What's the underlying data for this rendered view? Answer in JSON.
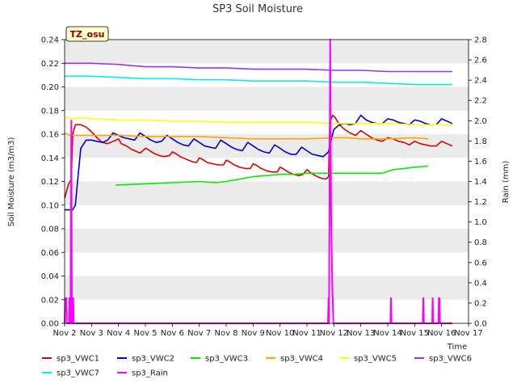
{
  "chart_data": {
    "type": "line",
    "title": "SP3 Soil Moisture",
    "xlabel": "Time",
    "ylabel": "Soil Moisture (m3/m3)",
    "y2label": "Rain (mm)",
    "badge": "TZ_osu",
    "xlim": [
      2,
      17
    ],
    "ylim": [
      0,
      0.24
    ],
    "y2lim": [
      0,
      2.8
    ],
    "x_ticks": [
      2,
      3,
      4,
      5,
      6,
      7,
      8,
      9,
      10,
      11,
      12,
      13,
      14,
      15,
      16,
      17
    ],
    "x_tick_labels": [
      "Nov 2",
      "Nov 3",
      "Nov 4",
      "Nov 5",
      "Nov 6",
      "Nov 7",
      "Nov 8",
      "Nov 9",
      "Nov 10",
      "Nov 11",
      "Nov 12",
      "Nov 13",
      "Nov 14",
      "Nov 15",
      "Nov 16",
      "Nov 17"
    ],
    "y_ticks": [
      "0.00",
      "0.02",
      "0.04",
      "0.06",
      "0.08",
      "0.10",
      "0.12",
      "0.14",
      "0.16",
      "0.18",
      "0.20",
      "0.22",
      "0.24"
    ],
    "y2_ticks": [
      "0.0",
      "0.2",
      "0.4",
      "0.6",
      "0.8",
      "1.0",
      "1.2",
      "1.4",
      "1.6",
      "1.8",
      "2.0",
      "2.2",
      "2.4",
      "2.6",
      "2.8"
    ],
    "grid": "horizontal bands",
    "legend_position": "bottom",
    "series": [
      {
        "name": "sp3_VWC1",
        "color": "#dd0000",
        "axis": "left",
        "points": [
          [
            2.0,
            0.106
          ],
          [
            2.15,
            0.118
          ],
          [
            2.25,
            0.122
          ],
          [
            2.3,
            0.16
          ],
          [
            2.4,
            0.168
          ],
          [
            2.6,
            0.168
          ],
          [
            2.8,
            0.166
          ],
          [
            3.0,
            0.162
          ],
          [
            3.2,
            0.157
          ],
          [
            3.4,
            0.153
          ],
          [
            3.6,
            0.152
          ],
          [
            3.8,
            0.154
          ],
          [
            4.0,
            0.156
          ],
          [
            4.1,
            0.152
          ],
          [
            4.3,
            0.15
          ],
          [
            4.5,
            0.147
          ],
          [
            4.7,
            0.145
          ],
          [
            4.8,
            0.144
          ],
          [
            4.9,
            0.146
          ],
          [
            5.0,
            0.148
          ],
          [
            5.1,
            0.147
          ],
          [
            5.3,
            0.144
          ],
          [
            5.5,
            0.142
          ],
          [
            5.7,
            0.141
          ],
          [
            5.9,
            0.142
          ],
          [
            6.0,
            0.145
          ],
          [
            6.1,
            0.144
          ],
          [
            6.3,
            0.141
          ],
          [
            6.5,
            0.139
          ],
          [
            6.7,
            0.137
          ],
          [
            6.9,
            0.136
          ],
          [
            7.0,
            0.14
          ],
          [
            7.1,
            0.139
          ],
          [
            7.3,
            0.136
          ],
          [
            7.5,
            0.135
          ],
          [
            7.7,
            0.134
          ],
          [
            7.9,
            0.134
          ],
          [
            8.0,
            0.138
          ],
          [
            8.1,
            0.137
          ],
          [
            8.3,
            0.134
          ],
          [
            8.5,
            0.132
          ],
          [
            8.7,
            0.131
          ],
          [
            8.9,
            0.131
          ],
          [
            9.0,
            0.135
          ],
          [
            9.1,
            0.134
          ],
          [
            9.3,
            0.131
          ],
          [
            9.5,
            0.129
          ],
          [
            9.7,
            0.128
          ],
          [
            9.9,
            0.128
          ],
          [
            10.0,
            0.132
          ],
          [
            10.1,
            0.131
          ],
          [
            10.3,
            0.128
          ],
          [
            10.5,
            0.126
          ],
          [
            10.7,
            0.125
          ],
          [
            10.85,
            0.126
          ],
          [
            11.0,
            0.13
          ],
          [
            11.1,
            0.128
          ],
          [
            11.3,
            0.125
          ],
          [
            11.5,
            0.123
          ],
          [
            11.7,
            0.122
          ],
          [
            11.8,
            0.124
          ],
          [
            11.85,
            0.17
          ],
          [
            11.95,
            0.176
          ],
          [
            12.05,
            0.174
          ],
          [
            12.2,
            0.168
          ],
          [
            12.4,
            0.164
          ],
          [
            12.6,
            0.161
          ],
          [
            12.8,
            0.159
          ],
          [
            13.0,
            0.163
          ],
          [
            13.2,
            0.16
          ],
          [
            13.4,
            0.157
          ],
          [
            13.6,
            0.155
          ],
          [
            13.8,
            0.154
          ],
          [
            14.0,
            0.157
          ],
          [
            14.2,
            0.156
          ],
          [
            14.4,
            0.154
          ],
          [
            14.6,
            0.153
          ],
          [
            14.8,
            0.151
          ],
          [
            15.0,
            0.154
          ],
          [
            15.2,
            0.152
          ],
          [
            15.4,
            0.151
          ],
          [
            15.6,
            0.15
          ],
          [
            15.8,
            0.15
          ],
          [
            16.0,
            0.154
          ],
          [
            16.2,
            0.152
          ],
          [
            16.4,
            0.15
          ]
        ]
      },
      {
        "name": "sp3_VWC2",
        "color": "#0000cc",
        "axis": "left",
        "points": [
          [
            2.0,
            0.096
          ],
          [
            2.3,
            0.096
          ],
          [
            2.4,
            0.1
          ],
          [
            2.5,
            0.125
          ],
          [
            2.6,
            0.148
          ],
          [
            2.8,
            0.155
          ],
          [
            3.0,
            0.155
          ],
          [
            3.2,
            0.154
          ],
          [
            3.4,
            0.153
          ],
          [
            3.6,
            0.155
          ],
          [
            3.8,
            0.161
          ],
          [
            4.0,
            0.159
          ],
          [
            4.2,
            0.157
          ],
          [
            4.4,
            0.156
          ],
          [
            4.6,
            0.155
          ],
          [
            4.8,
            0.161
          ],
          [
            5.0,
            0.158
          ],
          [
            5.2,
            0.155
          ],
          [
            5.4,
            0.153
          ],
          [
            5.6,
            0.154
          ],
          [
            5.8,
            0.159
          ],
          [
            6.0,
            0.156
          ],
          [
            6.2,
            0.153
          ],
          [
            6.4,
            0.151
          ],
          [
            6.6,
            0.15
          ],
          [
            6.8,
            0.156
          ],
          [
            7.0,
            0.153
          ],
          [
            7.2,
            0.15
          ],
          [
            7.4,
            0.149
          ],
          [
            7.6,
            0.148
          ],
          [
            7.8,
            0.155
          ],
          [
            8.0,
            0.152
          ],
          [
            8.2,
            0.149
          ],
          [
            8.4,
            0.147
          ],
          [
            8.6,
            0.146
          ],
          [
            8.8,
            0.153
          ],
          [
            9.0,
            0.15
          ],
          [
            9.2,
            0.147
          ],
          [
            9.4,
            0.145
          ],
          [
            9.6,
            0.144
          ],
          [
            9.8,
            0.151
          ],
          [
            10.0,
            0.148
          ],
          [
            10.2,
            0.145
          ],
          [
            10.4,
            0.143
          ],
          [
            10.6,
            0.143
          ],
          [
            10.8,
            0.149
          ],
          [
            11.0,
            0.146
          ],
          [
            11.2,
            0.143
          ],
          [
            11.4,
            0.142
          ],
          [
            11.6,
            0.141
          ],
          [
            11.8,
            0.145
          ],
          [
            11.9,
            0.155
          ],
          [
            12.0,
            0.164
          ],
          [
            12.2,
            0.168
          ],
          [
            12.4,
            0.169
          ],
          [
            12.6,
            0.168
          ],
          [
            12.8,
            0.169
          ],
          [
            13.0,
            0.176
          ],
          [
            13.2,
            0.172
          ],
          [
            13.4,
            0.17
          ],
          [
            13.6,
            0.169
          ],
          [
            13.8,
            0.169
          ],
          [
            14.0,
            0.173
          ],
          [
            14.2,
            0.172
          ],
          [
            14.4,
            0.17
          ],
          [
            14.6,
            0.169
          ],
          [
            14.8,
            0.168
          ],
          [
            15.0,
            0.172
          ],
          [
            15.2,
            0.171
          ],
          [
            15.4,
            0.169
          ],
          [
            15.6,
            0.168
          ],
          [
            15.8,
            0.168
          ],
          [
            16.0,
            0.173
          ],
          [
            16.2,
            0.171
          ],
          [
            16.4,
            0.169
          ]
        ]
      },
      {
        "name": "sp3_VWC3",
        "color": "#00ee00",
        "axis": "left",
        "points": [
          [
            3.9,
            0.117
          ],
          [
            5.0,
            0.118
          ],
          [
            6.0,
            0.119
          ],
          [
            7.0,
            0.12
          ],
          [
            7.6,
            0.119
          ],
          [
            8.0,
            0.12
          ],
          [
            8.5,
            0.122
          ],
          [
            9.0,
            0.124
          ],
          [
            9.5,
            0.125
          ],
          [
            10.0,
            0.126
          ],
          [
            10.5,
            0.126
          ],
          [
            11.0,
            0.127
          ],
          [
            12.0,
            0.127
          ],
          [
            13.0,
            0.127
          ],
          [
            13.8,
            0.127
          ],
          [
            14.2,
            0.13
          ],
          [
            14.6,
            0.131
          ],
          [
            15.0,
            0.132
          ],
          [
            15.5,
            0.133
          ]
        ]
      },
      {
        "name": "sp3_VWC4",
        "color": "#ffa500",
        "axis": "left",
        "points": [
          [
            2.0,
            0.161
          ],
          [
            2.2,
            0.159
          ],
          [
            3.0,
            0.159
          ],
          [
            4.0,
            0.159
          ],
          [
            5.0,
            0.158
          ],
          [
            6.0,
            0.158
          ],
          [
            7.0,
            0.158
          ],
          [
            8.0,
            0.157
          ],
          [
            9.0,
            0.156
          ],
          [
            10.0,
            0.156
          ],
          [
            11.0,
            0.156
          ],
          [
            12.0,
            0.157
          ],
          [
            12.5,
            0.157
          ],
          [
            13.0,
            0.156
          ],
          [
            14.0,
            0.156
          ],
          [
            15.0,
            0.157
          ],
          [
            15.5,
            0.156
          ]
        ]
      },
      {
        "name": "sp3_VWC5",
        "color": "#ffff00",
        "axis": "left",
        "points": [
          [
            2.0,
            0.174
          ],
          [
            2.3,
            0.173
          ],
          [
            2.7,
            0.174
          ],
          [
            3.0,
            0.173
          ],
          [
            4.0,
            0.172
          ],
          [
            5.0,
            0.172
          ],
          [
            6.0,
            0.171
          ],
          [
            7.0,
            0.171
          ],
          [
            8.0,
            0.17
          ],
          [
            9.0,
            0.17
          ],
          [
            10.0,
            0.17
          ],
          [
            11.0,
            0.17
          ],
          [
            12.0,
            0.169
          ],
          [
            13.0,
            0.169
          ],
          [
            14.0,
            0.169
          ],
          [
            15.0,
            0.168
          ],
          [
            16.0,
            0.168
          ],
          [
            16.4,
            0.168
          ]
        ]
      },
      {
        "name": "sp3_VWC6",
        "color": "#9933ee",
        "axis": "left",
        "points": [
          [
            2.0,
            0.22
          ],
          [
            3.0,
            0.22
          ],
          [
            4.0,
            0.219
          ],
          [
            4.5,
            0.218
          ],
          [
            5.0,
            0.217
          ],
          [
            6.0,
            0.217
          ],
          [
            7.0,
            0.216
          ],
          [
            8.0,
            0.216
          ],
          [
            9.0,
            0.215
          ],
          [
            10.0,
            0.215
          ],
          [
            11.0,
            0.215
          ],
          [
            12.0,
            0.214
          ],
          [
            13.0,
            0.214
          ],
          [
            14.0,
            0.213
          ],
          [
            15.0,
            0.213
          ],
          [
            16.0,
            0.213
          ],
          [
            16.4,
            0.213
          ]
        ]
      },
      {
        "name": "sp3_VWC7",
        "color": "#00eeee",
        "axis": "left",
        "points": [
          [
            2.0,
            0.209
          ],
          [
            3.0,
            0.209
          ],
          [
            4.0,
            0.208
          ],
          [
            5.0,
            0.207
          ],
          [
            6.0,
            0.207
          ],
          [
            7.0,
            0.206
          ],
          [
            8.0,
            0.206
          ],
          [
            9.0,
            0.205
          ],
          [
            10.0,
            0.205
          ],
          [
            11.0,
            0.205
          ],
          [
            12.0,
            0.204
          ],
          [
            13.0,
            0.204
          ],
          [
            14.0,
            0.203
          ],
          [
            15.0,
            0.202
          ],
          [
            16.0,
            0.202
          ],
          [
            16.4,
            0.202
          ]
        ]
      },
      {
        "name": "sp3_Rain",
        "color": "#ff00ff",
        "axis": "right",
        "points": [
          [
            2.0,
            0.0
          ],
          [
            2.02,
            0.25
          ],
          [
            2.06,
            0.25
          ],
          [
            2.08,
            0.0
          ],
          [
            2.16,
            0.0
          ],
          [
            2.18,
            0.25
          ],
          [
            2.2,
            0.0
          ],
          [
            2.22,
            0.0
          ],
          [
            2.25,
            2.0
          ],
          [
            2.27,
            0.0
          ],
          [
            2.3,
            0.0
          ],
          [
            2.32,
            0.25
          ],
          [
            2.34,
            0.0
          ],
          [
            11.78,
            0.0
          ],
          [
            11.8,
            0.25
          ],
          [
            11.82,
            0.0
          ],
          [
            11.86,
            2.8
          ],
          [
            11.9,
            1.0
          ],
          [
            11.94,
            0.4
          ],
          [
            11.98,
            0.0
          ],
          [
            14.1,
            0.0
          ],
          [
            14.12,
            0.25
          ],
          [
            14.14,
            0.0
          ],
          [
            15.3,
            0.0
          ],
          [
            15.32,
            0.25
          ],
          [
            15.34,
            0.0
          ],
          [
            15.65,
            0.0
          ],
          [
            15.67,
            0.25
          ],
          [
            15.69,
            0.0
          ],
          [
            15.88,
            0.0
          ],
          [
            15.9,
            0.25
          ],
          [
            15.92,
            0.25
          ],
          [
            15.94,
            0.0
          ],
          [
            16.4,
            0.0
          ]
        ]
      }
    ]
  }
}
